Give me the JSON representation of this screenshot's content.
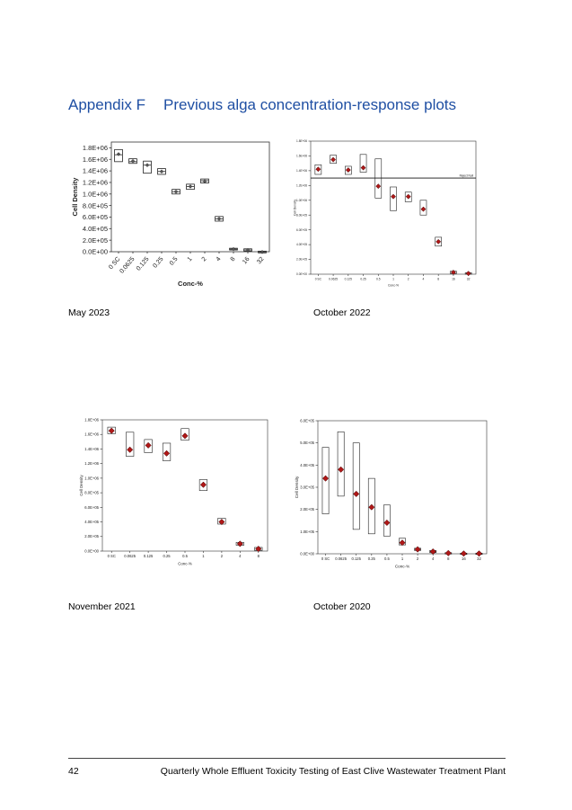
{
  "appendix": {
    "label": "Appendix F",
    "title": "Previous alga concentration-response plots"
  },
  "captions": [
    "May 2023",
    "October 2022",
    "November 2021",
    "October 2020"
  ],
  "footer": {
    "page_number": "42",
    "document_title": "Quarterly Whole Effluent Toxicity Testing of East Clive Wastewater Treatment Plant"
  },
  "colors": {
    "heading": "#1f4fa3",
    "mean_marker": "#b01818"
  },
  "chart_data": [
    {
      "type": "box",
      "style": "plain",
      "xlabel": "Conc-%",
      "ylabel": "Cell Density",
      "categories": [
        "0 SC",
        "0.0625",
        "0.125",
        "0.25",
        "0.5",
        "1",
        "2",
        "4",
        "8",
        "16",
        "32"
      ],
      "ylim": [
        0,
        1900000
      ],
      "yticks": [
        0,
        200000,
        400000,
        600000,
        800000,
        1000000,
        1200000,
        1400000,
        1600000,
        1800000
      ],
      "ytick_labels": [
        "0.0E+00",
        "2.0E+05",
        "4.0E+05",
        "6.0E+05",
        "8.0E+05",
        "1.0E+06",
        "1.2E+06",
        "1.4E+06",
        "1.6E+06",
        "1.8E+06"
      ],
      "box_low": [
        1560000,
        1530000,
        1360000,
        1340000,
        1000000,
        1080000,
        1190000,
        530000,
        30000,
        10000,
        -20000
      ],
      "box_high": [
        1770000,
        1610000,
        1570000,
        1440000,
        1080000,
        1170000,
        1260000,
        610000,
        60000,
        50000,
        10000
      ],
      "median": [
        1680000,
        1560000,
        1500000,
        1390000,
        1040000,
        1130000,
        1230000,
        570000,
        45000,
        30000,
        -5000
      ],
      "mean": [
        1690000,
        1570000,
        1500000,
        1390000,
        1040000,
        1130000,
        1220000,
        570000,
        45000,
        30000,
        -5000
      ]
    },
    {
      "type": "box",
      "style": "mean-marker",
      "xlabel": "Conc-%",
      "ylabel": "Cell Density",
      "reference_line": {
        "value": 1300000,
        "label": "Reject Null"
      },
      "categories": [
        "0 SC",
        "0.0625",
        "0.125",
        "0.25",
        "0.5",
        "1",
        "2",
        "4",
        "8",
        "16",
        "32"
      ],
      "ylim": [
        0,
        1800000
      ],
      "yticks": [
        0,
        200000,
        400000,
        600000,
        800000,
        1000000,
        1200000,
        1400000,
        1600000,
        1800000
      ],
      "ytick_labels": [
        "0.0E+00",
        "2.0E+05",
        "4.0E+05",
        "6.0E+05",
        "8.0E+05",
        "1.0E+06",
        "1.2E+06",
        "1.4E+06",
        "1.6E+06",
        "1.8E+06"
      ],
      "box_low": [
        1350000,
        1500000,
        1350000,
        1380000,
        1030000,
        860000,
        980000,
        800000,
        380000,
        10000,
        0
      ],
      "box_high": [
        1480000,
        1610000,
        1460000,
        1620000,
        1560000,
        1180000,
        1110000,
        1000000,
        500000,
        40000,
        20000
      ],
      "mean": [
        1420000,
        1550000,
        1410000,
        1440000,
        1190000,
        1050000,
        1050000,
        880000,
        440000,
        25000,
        10000
      ]
    },
    {
      "type": "box",
      "style": "mean-marker",
      "xlabel": "Conc-%",
      "ylabel": "Cell Density",
      "categories": [
        "0 SC",
        "0.0625",
        "0.125",
        "0.25",
        "0.5",
        "1",
        "2",
        "4",
        "8"
      ],
      "ylim": [
        0,
        1800000
      ],
      "yticks": [
        0,
        200000,
        400000,
        600000,
        800000,
        1000000,
        1200000,
        1400000,
        1600000,
        1800000
      ],
      "ytick_labels": [
        "0.0E+00",
        "2.0E+05",
        "4.0E+05",
        "6.0E+05",
        "8.0E+05",
        "1.0E+06",
        "1.2E+06",
        "1.4E+06",
        "1.6E+06",
        "1.8E+06"
      ],
      "box_low": [
        1610000,
        1300000,
        1350000,
        1240000,
        1520000,
        830000,
        370000,
        80000,
        10000
      ],
      "box_high": [
        1700000,
        1630000,
        1530000,
        1480000,
        1680000,
        980000,
        450000,
        120000,
        50000
      ],
      "mean": [
        1650000,
        1390000,
        1450000,
        1340000,
        1580000,
        910000,
        400000,
        100000,
        30000
      ]
    },
    {
      "type": "box",
      "style": "mean-marker",
      "xlabel": "Conc-%",
      "ylabel": "Cell Density",
      "categories": [
        "0 SC",
        "0.0625",
        "0.125",
        "0.25",
        "0.5",
        "1",
        "2",
        "4",
        "8",
        "16",
        "32"
      ],
      "ylim": [
        0,
        600000
      ],
      "yticks": [
        0,
        100000,
        200000,
        300000,
        400000,
        500000,
        600000
      ],
      "ytick_labels": [
        "0.0E+00",
        "1.0E+05",
        "2.0E+05",
        "3.0E+05",
        "4.0E+05",
        "5.0E+05",
        "6.0E+05"
      ],
      "box_low": [
        180000,
        260000,
        110000,
        90000,
        80000,
        40000,
        15000,
        5000,
        0,
        0,
        0
      ],
      "box_high": [
        480000,
        550000,
        500000,
        340000,
        220000,
        70000,
        25000,
        15000,
        5000,
        3000,
        3000
      ],
      "mean": [
        340000,
        380000,
        270000,
        210000,
        140000,
        50000,
        20000,
        10000,
        3000,
        1000,
        1000
      ]
    }
  ]
}
